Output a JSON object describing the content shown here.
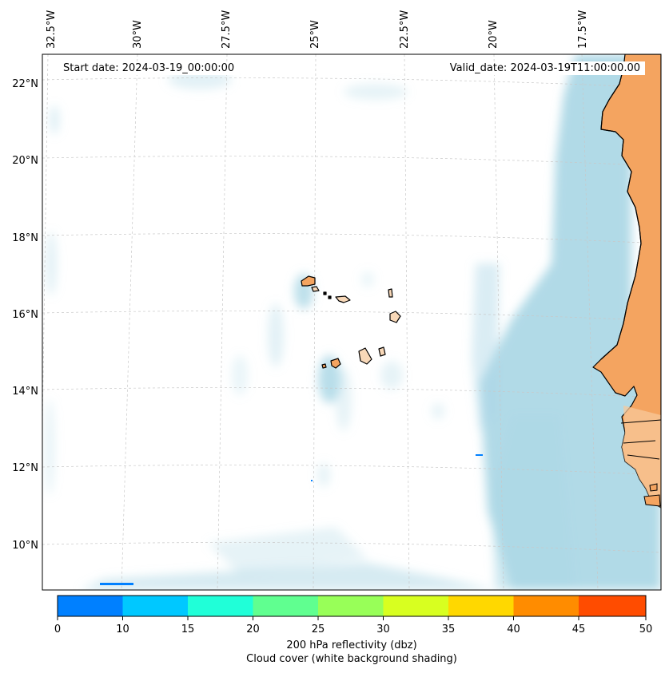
{
  "map": {
    "start_date": "Start date: 2024-03-19_00:00:00",
    "valid_date": "Valid_date: 2024-03-19T11:00:00.00",
    "longitude_labels": [
      "32.5°W",
      "30°W",
      "27.5°W",
      "25°W",
      "22.5°W",
      "20°W",
      "17.5°W"
    ],
    "latitude_labels": [
      "22°N",
      "20°N",
      "18°N",
      "16°N",
      "14°N",
      "12°N",
      "10°N"
    ],
    "colors": {
      "land": "#F4A460",
      "cloud": "#ADD8E6",
      "coastline": "#000000",
      "grid": "#c8c8c8"
    }
  },
  "colorbar": {
    "ticks": [
      "0",
      "10",
      "15",
      "20",
      "25",
      "30",
      "35",
      "40",
      "45",
      "50"
    ],
    "colors": [
      "#0080FF",
      "#00C8FF",
      "#20FFD8",
      "#60FF90",
      "#98FF58",
      "#D8FF20",
      "#FFD800",
      "#FF8C00",
      "#FF4C00"
    ],
    "label": "200 hPa reflectivity (dbz)",
    "sublabel": "Cloud cover (white background shading)"
  }
}
